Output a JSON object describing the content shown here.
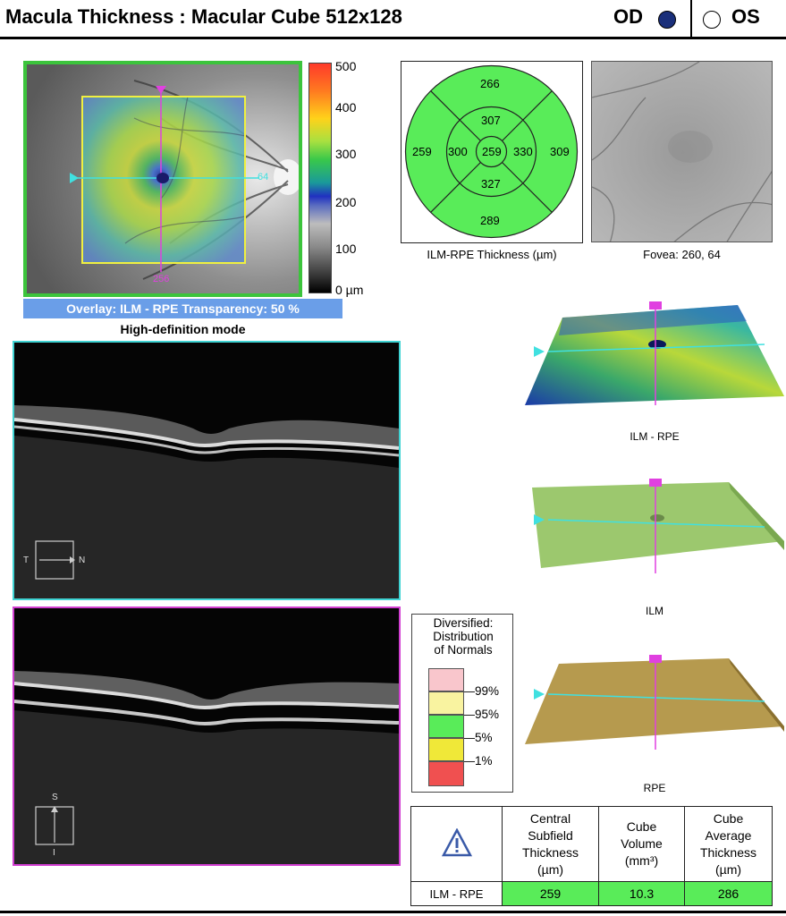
{
  "header": {
    "title": "Macula Thickness : Macular Cube 512x128",
    "od_label": "OD",
    "os_label": "OS",
    "od_selected": true,
    "colors": {
      "od_dot": "#1a2f7a",
      "os_dot": "#ffffff"
    }
  },
  "fundus": {
    "vertical_marker": "256",
    "horizontal_marker": "64",
    "border_color": "#3cc43c",
    "overlay_label": "Overlay: ILM - RPE  Transparency: 50 %",
    "mode_label": "High-definition mode"
  },
  "colorbar": {
    "labels": [
      "500",
      "400",
      "300",
      "200",
      "100",
      "0 µm"
    ]
  },
  "etdrs": {
    "outer_superior": "266",
    "inner_superior": "307",
    "outer_temporal": "259",
    "inner_temporal": "300",
    "center": "259",
    "inner_nasal": "330",
    "outer_nasal": "309",
    "inner_inferior": "327",
    "outer_inferior": "289",
    "fill_color": "#59ec59",
    "caption": "ILM-RPE Thickness (µm)"
  },
  "fovea": {
    "caption": "Fovea: 260, 64"
  },
  "bscans": {
    "horizontal": {
      "orient_left": "T",
      "orient_right": "N",
      "border_color": "#3fd3d3"
    },
    "vertical": {
      "orient_top": "S",
      "orient_bottom": "I",
      "border_color": "#d23fd2"
    }
  },
  "surfaces": {
    "ilm_rpe_label": "ILM - RPE",
    "ilm_label": "ILM",
    "rpe_label": "RPE"
  },
  "normative": {
    "title": [
      "Diversified:",
      "Distribution",
      "of Normals"
    ],
    "levels": [
      "99%",
      "95%",
      "5%",
      "1%"
    ],
    "colors": {
      "above99": "#f9c6cc",
      "p95_99": "#f9f3a0",
      "p5_95": "#59ec59",
      "p1_5": "#f0e838",
      "below1": "#f05050"
    }
  },
  "summary": {
    "warning_icon": "warning-triangle-icon",
    "headers": [
      "Central Subfield Thickness (µm)",
      "Cube Volume (mm³)",
      "Cube Average Thickness (µm)"
    ],
    "header_lines": [
      [
        "Central",
        "Subfield",
        "Thickness",
        "(µm)"
      ],
      [
        "Cube",
        "Volume",
        "(mm³)"
      ],
      [
        "Cube",
        "Average",
        "Thickness",
        "(µm)"
      ]
    ],
    "row_label": "ILM - RPE",
    "values": [
      "259",
      "10.3",
      "286"
    ]
  }
}
